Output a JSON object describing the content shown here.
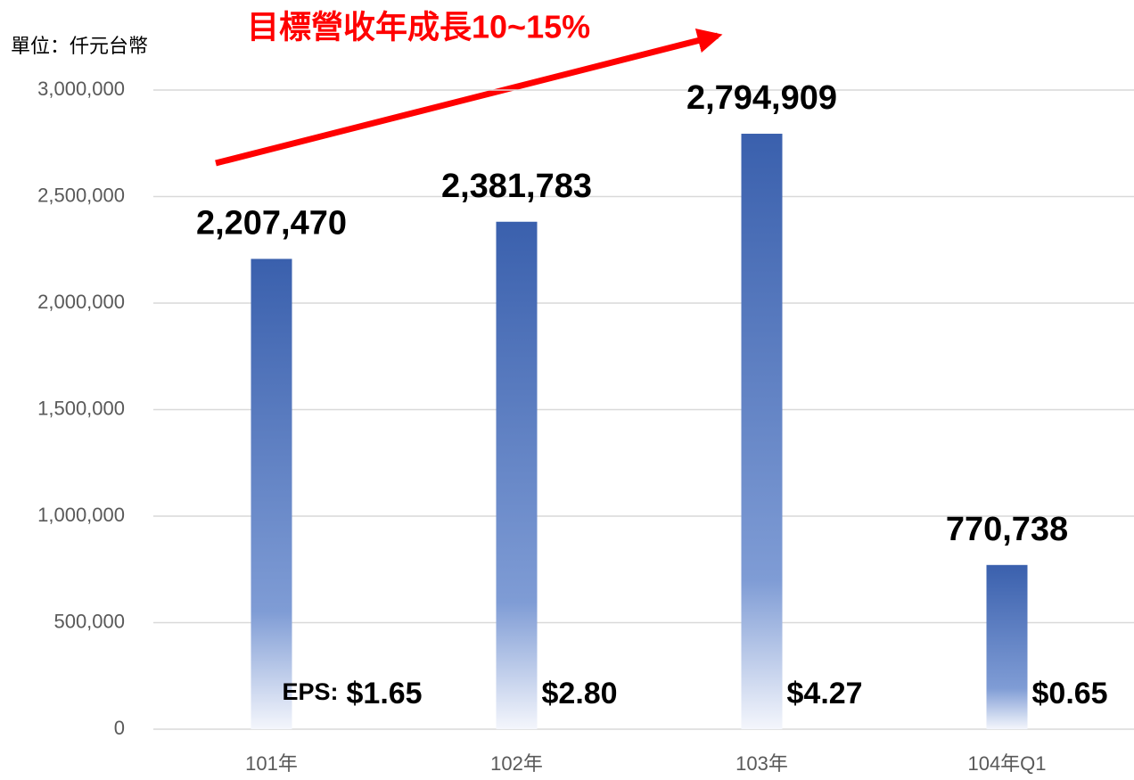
{
  "chart_data": {
    "type": "bar",
    "unit_label": "單位：仟元台幣",
    "annotation": "目標營收年成長10~15%",
    "categories": [
      "101年",
      "102年",
      "103年",
      "104年Q1"
    ],
    "values": [
      2207470,
      2381783,
      2794909,
      770738
    ],
    "value_labels": [
      "2,207,470",
      "2,381,783",
      "2,794,909",
      "770,738"
    ],
    "eps_prefix": "EPS:",
    "eps_labels": [
      "$1.65",
      "$2.80",
      "$4.27",
      "$0.65"
    ],
    "color": "#3a60ad",
    "ylim": [
      0,
      3000000
    ],
    "yticks": [
      0,
      {
        "value": 500000,
        "label": "500,000"
      },
      {
        "value": 1000000,
        "label": "1,000,000"
      },
      {
        "value": 1500000,
        "label": "1,500,000"
      },
      {
        "value": 2000000,
        "label": "2,000,000"
      },
      {
        "value": 2500000,
        "label": "2,500,000"
      },
      {
        "value": 3000000,
        "label": "3,000,000"
      }
    ],
    "grid": true
  }
}
